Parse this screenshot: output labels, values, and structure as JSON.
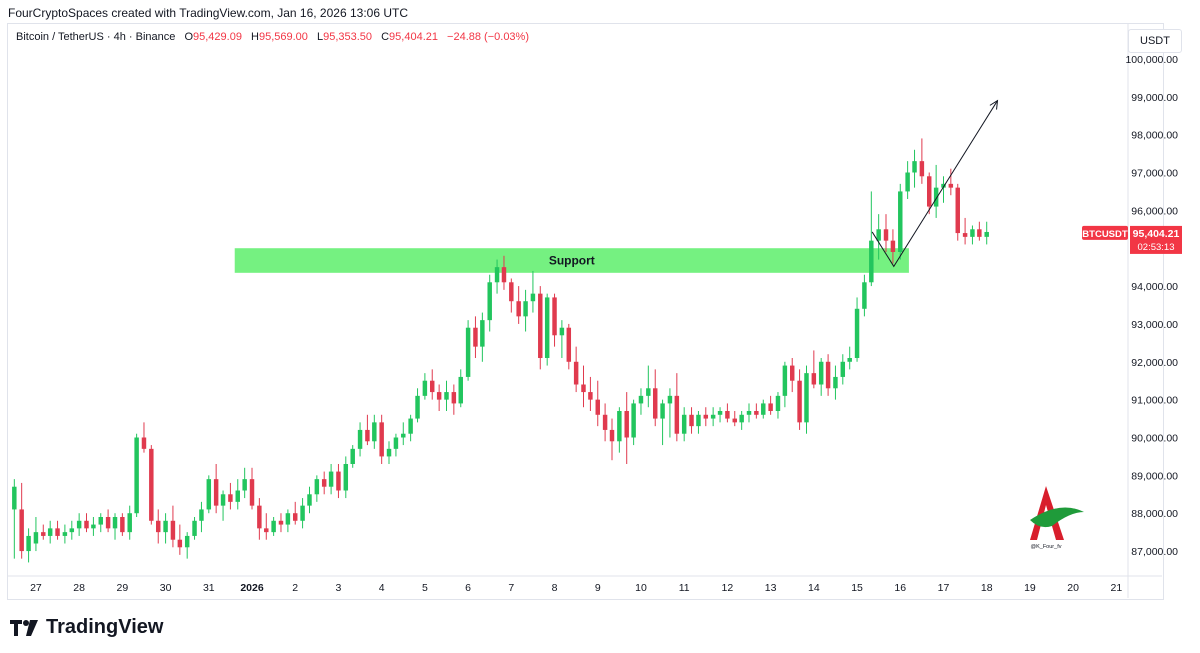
{
  "header": {
    "attribution": "FourCryptoSpaces created with TradingView.com, Jan 16, 2026 13:06 UTC"
  },
  "legend": {
    "symbol": "Bitcoin / TetherUS · 4h · Binance",
    "o_label": "O",
    "o_value": "95,429.09",
    "h_label": "H",
    "h_value": "95,569.00",
    "l_label": "L",
    "l_value": "95,353.50",
    "c_label": "C",
    "c_value": "95,404.21",
    "change": "−24.88 (−0.03%)"
  },
  "currency_button": "USDT",
  "price_tag": {
    "ticker": "BTCUSDT",
    "price": "95,404.21",
    "countdown": "02:53:13"
  },
  "support_label": "Support",
  "watermark_handle": "@K_Four_fv",
  "footer": {
    "brand": "TradingView"
  },
  "colors": {
    "up": "#22c55e",
    "down": "#e03a4e",
    "support_zone": "#6ef07a",
    "tag": "#f23645"
  },
  "chart_data": {
    "type": "candlestick",
    "timeframe": "4h",
    "x_tick_labels": [
      "27",
      "28",
      "29",
      "30",
      "31",
      "2026",
      "2",
      "3",
      "4",
      "5",
      "6",
      "7",
      "8",
      "9",
      "10",
      "11",
      "12",
      "13",
      "14",
      "15",
      "16",
      "17",
      "18",
      "19",
      "20",
      "21"
    ],
    "y_tick_labels": [
      "100,000.00",
      "99,000.00",
      "98,000.00",
      "97,000.00",
      "96,000.00",
      "94,000.00",
      "93,000.00",
      "92,000.00",
      "91,000.00",
      "90,000.00",
      "89,000.00",
      "88,000.00",
      "87,000.00"
    ],
    "y_tick_values": [
      100000,
      99000,
      98000,
      97000,
      96000,
      94000,
      93000,
      92000,
      91000,
      90000,
      89000,
      88000,
      87000
    ],
    "ylim": [
      86500,
      100500
    ],
    "xlim_days": [
      26.4,
      52.2
    ],
    "support_zone": {
      "low": 94350,
      "high": 95000,
      "x_from": 31.6,
      "x_to": 47.2
    },
    "projection_arrow": [
      [
        46.35,
        95430
      ],
      [
        46.85,
        94520
      ],
      [
        49.25,
        98900
      ]
    ],
    "candles": [
      {
        "t": 26.5,
        "o": 88100,
        "h": 88900,
        "l": 86800,
        "c": 88700
      },
      {
        "t": 26.67,
        "o": 88100,
        "h": 88800,
        "l": 86800,
        "c": 87000
      },
      {
        "t": 26.83,
        "o": 87000,
        "h": 87600,
        "l": 86700,
        "c": 87400
      },
      {
        "t": 27.0,
        "o": 87200,
        "h": 87900,
        "l": 87000,
        "c": 87500
      },
      {
        "t": 27.17,
        "o": 87500,
        "h": 87700,
        "l": 87300,
        "c": 87400
      },
      {
        "t": 27.33,
        "o": 87400,
        "h": 87800,
        "l": 87200,
        "c": 87600
      },
      {
        "t": 27.5,
        "o": 87600,
        "h": 87800,
        "l": 87300,
        "c": 87400
      },
      {
        "t": 27.67,
        "o": 87400,
        "h": 87700,
        "l": 87200,
        "c": 87500
      },
      {
        "t": 27.83,
        "o": 87500,
        "h": 87800,
        "l": 87300,
        "c": 87600
      },
      {
        "t": 28.0,
        "o": 87600,
        "h": 88000,
        "l": 87400,
        "c": 87800
      },
      {
        "t": 28.17,
        "o": 87800,
        "h": 88000,
        "l": 87500,
        "c": 87600
      },
      {
        "t": 28.33,
        "o": 87600,
        "h": 87900,
        "l": 87400,
        "c": 87700
      },
      {
        "t": 28.5,
        "o": 87700,
        "h": 88000,
        "l": 87500,
        "c": 87900
      },
      {
        "t": 28.67,
        "o": 87900,
        "h": 88100,
        "l": 87500,
        "c": 87600
      },
      {
        "t": 28.83,
        "o": 87600,
        "h": 88000,
        "l": 87300,
        "c": 87900
      },
      {
        "t": 29.0,
        "o": 87900,
        "h": 88000,
        "l": 87400,
        "c": 87500
      },
      {
        "t": 29.17,
        "o": 87500,
        "h": 88200,
        "l": 87300,
        "c": 88000
      },
      {
        "t": 29.33,
        "o": 88000,
        "h": 90100,
        "l": 87900,
        "c": 90000
      },
      {
        "t": 29.5,
        "o": 90000,
        "h": 90400,
        "l": 89600,
        "c": 89700
      },
      {
        "t": 29.67,
        "o": 89700,
        "h": 89800,
        "l": 87700,
        "c": 87800
      },
      {
        "t": 29.83,
        "o": 87800,
        "h": 88100,
        "l": 87200,
        "c": 87500
      },
      {
        "t": 30.0,
        "o": 87500,
        "h": 88000,
        "l": 87200,
        "c": 87800
      },
      {
        "t": 30.17,
        "o": 87800,
        "h": 88200,
        "l": 87100,
        "c": 87300
      },
      {
        "t": 30.33,
        "o": 87300,
        "h": 87700,
        "l": 86900,
        "c": 87100
      },
      {
        "t": 30.5,
        "o": 87100,
        "h": 87500,
        "l": 86800,
        "c": 87400
      },
      {
        "t": 30.67,
        "o": 87400,
        "h": 87900,
        "l": 87300,
        "c": 87800
      },
      {
        "t": 30.83,
        "o": 87800,
        "h": 88300,
        "l": 87500,
        "c": 88100
      },
      {
        "t": 31.0,
        "o": 88100,
        "h": 89000,
        "l": 88000,
        "c": 88900
      },
      {
        "t": 31.17,
        "o": 88900,
        "h": 89300,
        "l": 88000,
        "c": 88200
      },
      {
        "t": 31.33,
        "o": 88200,
        "h": 88600,
        "l": 87800,
        "c": 88500
      },
      {
        "t": 31.5,
        "o": 88500,
        "h": 88800,
        "l": 88100,
        "c": 88300
      },
      {
        "t": 31.67,
        "o": 88300,
        "h": 88900,
        "l": 88100,
        "c": 88600
      },
      {
        "t": 31.83,
        "o": 88600,
        "h": 89200,
        "l": 88400,
        "c": 88900
      },
      {
        "t": 32.0,
        "o": 88900,
        "h": 89200,
        "l": 88100,
        "c": 88200
      },
      {
        "t": 32.17,
        "o": 88200,
        "h": 88400,
        "l": 87300,
        "c": 87600
      },
      {
        "t": 32.33,
        "o": 87600,
        "h": 88000,
        "l": 87300,
        "c": 87500
      },
      {
        "t": 32.5,
        "o": 87500,
        "h": 87900,
        "l": 87400,
        "c": 87800
      },
      {
        "t": 32.67,
        "o": 87800,
        "h": 88000,
        "l": 87500,
        "c": 87700
      },
      {
        "t": 32.83,
        "o": 87700,
        "h": 88100,
        "l": 87500,
        "c": 88000
      },
      {
        "t": 33.0,
        "o": 88000,
        "h": 88300,
        "l": 87700,
        "c": 87800
      },
      {
        "t": 33.17,
        "o": 87800,
        "h": 88400,
        "l": 87600,
        "c": 88200
      },
      {
        "t": 33.33,
        "o": 88200,
        "h": 88700,
        "l": 88000,
        "c": 88500
      },
      {
        "t": 33.5,
        "o": 88500,
        "h": 89000,
        "l": 88300,
        "c": 88900
      },
      {
        "t": 33.67,
        "o": 88900,
        "h": 89100,
        "l": 88500,
        "c": 88700
      },
      {
        "t": 33.83,
        "o": 88700,
        "h": 89300,
        "l": 88500,
        "c": 89100
      },
      {
        "t": 34.0,
        "o": 89100,
        "h": 89300,
        "l": 88400,
        "c": 88600
      },
      {
        "t": 34.17,
        "o": 88600,
        "h": 89500,
        "l": 88400,
        "c": 89300
      },
      {
        "t": 34.33,
        "o": 89300,
        "h": 89800,
        "l": 89200,
        "c": 89700
      },
      {
        "t": 34.5,
        "o": 89700,
        "h": 90400,
        "l": 89500,
        "c": 90200
      },
      {
        "t": 34.67,
        "o": 90200,
        "h": 90600,
        "l": 89800,
        "c": 89900
      },
      {
        "t": 34.83,
        "o": 89900,
        "h": 90600,
        "l": 89700,
        "c": 90400
      },
      {
        "t": 35.0,
        "o": 90400,
        "h": 90600,
        "l": 89300,
        "c": 89500
      },
      {
        "t": 35.17,
        "o": 89500,
        "h": 89900,
        "l": 89300,
        "c": 89700
      },
      {
        "t": 35.33,
        "o": 89700,
        "h": 90100,
        "l": 89500,
        "c": 90000
      },
      {
        "t": 35.5,
        "o": 90000,
        "h": 90400,
        "l": 89800,
        "c": 90100
      },
      {
        "t": 35.67,
        "o": 90100,
        "h": 90600,
        "l": 89900,
        "c": 90500
      },
      {
        "t": 35.83,
        "o": 90500,
        "h": 91300,
        "l": 90400,
        "c": 91100
      },
      {
        "t": 36.0,
        "o": 91100,
        "h": 91700,
        "l": 91000,
        "c": 91500
      },
      {
        "t": 36.17,
        "o": 91500,
        "h": 91800,
        "l": 91000,
        "c": 91200
      },
      {
        "t": 36.33,
        "o": 91200,
        "h": 91400,
        "l": 90700,
        "c": 91000
      },
      {
        "t": 36.5,
        "o": 91000,
        "h": 91500,
        "l": 90700,
        "c": 91200
      },
      {
        "t": 36.67,
        "o": 91200,
        "h": 91400,
        "l": 90600,
        "c": 90900
      },
      {
        "t": 36.83,
        "o": 90900,
        "h": 91800,
        "l": 90800,
        "c": 91600
      },
      {
        "t": 37.0,
        "o": 91600,
        "h": 93100,
        "l": 91500,
        "c": 92900
      },
      {
        "t": 37.17,
        "o": 92900,
        "h": 93200,
        "l": 92100,
        "c": 92400
      },
      {
        "t": 37.33,
        "o": 92400,
        "h": 93300,
        "l": 92000,
        "c": 93100
      },
      {
        "t": 37.5,
        "o": 93100,
        "h": 94300,
        "l": 92800,
        "c": 94100
      },
      {
        "t": 37.67,
        "o": 94100,
        "h": 94700,
        "l": 93800,
        "c": 94500
      },
      {
        "t": 37.83,
        "o": 94500,
        "h": 94800,
        "l": 93900,
        "c": 94100
      },
      {
        "t": 38.0,
        "o": 94100,
        "h": 94200,
        "l": 93300,
        "c": 93600
      },
      {
        "t": 38.17,
        "o": 93600,
        "h": 94000,
        "l": 93000,
        "c": 93200
      },
      {
        "t": 38.33,
        "o": 93200,
        "h": 93900,
        "l": 92800,
        "c": 93600
      },
      {
        "t": 38.5,
        "o": 93600,
        "h": 94400,
        "l": 93300,
        "c": 93800
      },
      {
        "t": 38.67,
        "o": 93800,
        "h": 94000,
        "l": 91800,
        "c": 92100
      },
      {
        "t": 38.83,
        "o": 92100,
        "h": 93800,
        "l": 91900,
        "c": 93700
      },
      {
        "t": 39.0,
        "o": 93700,
        "h": 93800,
        "l": 92400,
        "c": 92700
      },
      {
        "t": 39.17,
        "o": 92700,
        "h": 93100,
        "l": 92100,
        "c": 92900
      },
      {
        "t": 39.33,
        "o": 92900,
        "h": 93000,
        "l": 91800,
        "c": 92000
      },
      {
        "t": 39.5,
        "o": 92000,
        "h": 92400,
        "l": 91200,
        "c": 91400
      },
      {
        "t": 39.67,
        "o": 91400,
        "h": 91900,
        "l": 90800,
        "c": 91200
      },
      {
        "t": 39.83,
        "o": 91200,
        "h": 91600,
        "l": 90700,
        "c": 91000
      },
      {
        "t": 40.0,
        "o": 91000,
        "h": 91500,
        "l": 90300,
        "c": 90600
      },
      {
        "t": 40.17,
        "o": 90600,
        "h": 90900,
        "l": 89900,
        "c": 90200
      },
      {
        "t": 40.33,
        "o": 90200,
        "h": 90500,
        "l": 89400,
        "c": 89900
      },
      {
        "t": 40.5,
        "o": 89900,
        "h": 90800,
        "l": 89600,
        "c": 90700
      },
      {
        "t": 40.67,
        "o": 90700,
        "h": 91200,
        "l": 89300,
        "c": 90000
      },
      {
        "t": 40.83,
        "o": 90000,
        "h": 91000,
        "l": 89800,
        "c": 90900
      },
      {
        "t": 41.0,
        "o": 90900,
        "h": 91300,
        "l": 90600,
        "c": 91100
      },
      {
        "t": 41.17,
        "o": 91100,
        "h": 91900,
        "l": 90800,
        "c": 91300
      },
      {
        "t": 41.33,
        "o": 91300,
        "h": 91800,
        "l": 90300,
        "c": 90500
      },
      {
        "t": 41.5,
        "o": 90500,
        "h": 91000,
        "l": 89800,
        "c": 90900
      },
      {
        "t": 41.67,
        "o": 90900,
        "h": 91300,
        "l": 90000,
        "c": 91100
      },
      {
        "t": 41.83,
        "o": 91100,
        "h": 91700,
        "l": 89900,
        "c": 90100
      },
      {
        "t": 42.0,
        "o": 90100,
        "h": 90800,
        "l": 89900,
        "c": 90600
      },
      {
        "t": 42.17,
        "o": 90600,
        "h": 90800,
        "l": 90100,
        "c": 90300
      },
      {
        "t": 42.33,
        "o": 90300,
        "h": 90700,
        "l": 90100,
        "c": 90600
      },
      {
        "t": 42.5,
        "o": 90600,
        "h": 90800,
        "l": 90300,
        "c": 90500
      },
      {
        "t": 42.67,
        "o": 90500,
        "h": 90800,
        "l": 90300,
        "c": 90600
      },
      {
        "t": 42.83,
        "o": 90600,
        "h": 90800,
        "l": 90400,
        "c": 90700
      },
      {
        "t": 43.0,
        "o": 90700,
        "h": 90900,
        "l": 90400,
        "c": 90500
      },
      {
        "t": 43.17,
        "o": 90500,
        "h": 90700,
        "l": 90300,
        "c": 90400
      },
      {
        "t": 43.33,
        "o": 90400,
        "h": 90700,
        "l": 90200,
        "c": 90600
      },
      {
        "t": 43.5,
        "o": 90600,
        "h": 90900,
        "l": 90400,
        "c": 90700
      },
      {
        "t": 43.67,
        "o": 90700,
        "h": 90900,
        "l": 90500,
        "c": 90600
      },
      {
        "t": 43.83,
        "o": 90600,
        "h": 91000,
        "l": 90500,
        "c": 90900
      },
      {
        "t": 44.0,
        "o": 90900,
        "h": 91100,
        "l": 90600,
        "c": 90700
      },
      {
        "t": 44.17,
        "o": 90700,
        "h": 91200,
        "l": 90500,
        "c": 91100
      },
      {
        "t": 44.33,
        "o": 91100,
        "h": 92000,
        "l": 90800,
        "c": 91900
      },
      {
        "t": 44.5,
        "o": 91900,
        "h": 92100,
        "l": 91200,
        "c": 91500
      },
      {
        "t": 44.67,
        "o": 91500,
        "h": 91800,
        "l": 90200,
        "c": 90400
      },
      {
        "t": 44.83,
        "o": 90400,
        "h": 91900,
        "l": 90100,
        "c": 91700
      },
      {
        "t": 45.0,
        "o": 91700,
        "h": 92300,
        "l": 91300,
        "c": 91400
      },
      {
        "t": 45.17,
        "o": 91400,
        "h": 92100,
        "l": 91100,
        "c": 92000
      },
      {
        "t": 45.33,
        "o": 92000,
        "h": 92200,
        "l": 91100,
        "c": 91300
      },
      {
        "t": 45.5,
        "o": 91300,
        "h": 91900,
        "l": 91000,
        "c": 91600
      },
      {
        "t": 45.67,
        "o": 91600,
        "h": 92200,
        "l": 91400,
        "c": 92000
      },
      {
        "t": 45.83,
        "o": 92000,
        "h": 92400,
        "l": 91800,
        "c": 92100
      },
      {
        "t": 46.0,
        "o": 92100,
        "h": 93700,
        "l": 92000,
        "c": 93400
      },
      {
        "t": 46.17,
        "o": 93400,
        "h": 94300,
        "l": 93200,
        "c": 94100
      },
      {
        "t": 46.33,
        "o": 94100,
        "h": 96500,
        "l": 94000,
        "c": 95200
      },
      {
        "t": 46.5,
        "o": 95200,
        "h": 95900,
        "l": 94700,
        "c": 95500
      },
      {
        "t": 46.67,
        "o": 95500,
        "h": 95900,
        "l": 94900,
        "c": 95200
      },
      {
        "t": 46.83,
        "o": 95200,
        "h": 95500,
        "l": 94600,
        "c": 94900
      },
      {
        "t": 47.0,
        "o": 94900,
        "h": 96700,
        "l": 94700,
        "c": 96500
      },
      {
        "t": 47.17,
        "o": 96500,
        "h": 97300,
        "l": 96300,
        "c": 97000
      },
      {
        "t": 47.33,
        "o": 97000,
        "h": 97600,
        "l": 96600,
        "c": 97300
      },
      {
        "t": 47.5,
        "o": 97300,
        "h": 97900,
        "l": 96700,
        "c": 96900
      },
      {
        "t": 47.67,
        "o": 96900,
        "h": 97000,
        "l": 95900,
        "c": 96100
      },
      {
        "t": 47.83,
        "o": 96100,
        "h": 97200,
        "l": 95800,
        "c": 96600
      },
      {
        "t": 48.0,
        "o": 96600,
        "h": 96900,
        "l": 96200,
        "c": 96700
      },
      {
        "t": 48.17,
        "o": 96700,
        "h": 97100,
        "l": 96400,
        "c": 96600
      },
      {
        "t": 48.33,
        "o": 96600,
        "h": 96700,
        "l": 95200,
        "c": 95400
      },
      {
        "t": 48.5,
        "o": 95400,
        "h": 95800,
        "l": 95100,
        "c": 95300
      },
      {
        "t": 48.67,
        "o": 95300,
        "h": 95600,
        "l": 95100,
        "c": 95500
      },
      {
        "t": 48.83,
        "o": 95500,
        "h": 95700,
        "l": 95200,
        "c": 95300
      },
      {
        "t": 49.0,
        "o": 95300,
        "h": 95700,
        "l": 95100,
        "c": 95429
      }
    ]
  }
}
